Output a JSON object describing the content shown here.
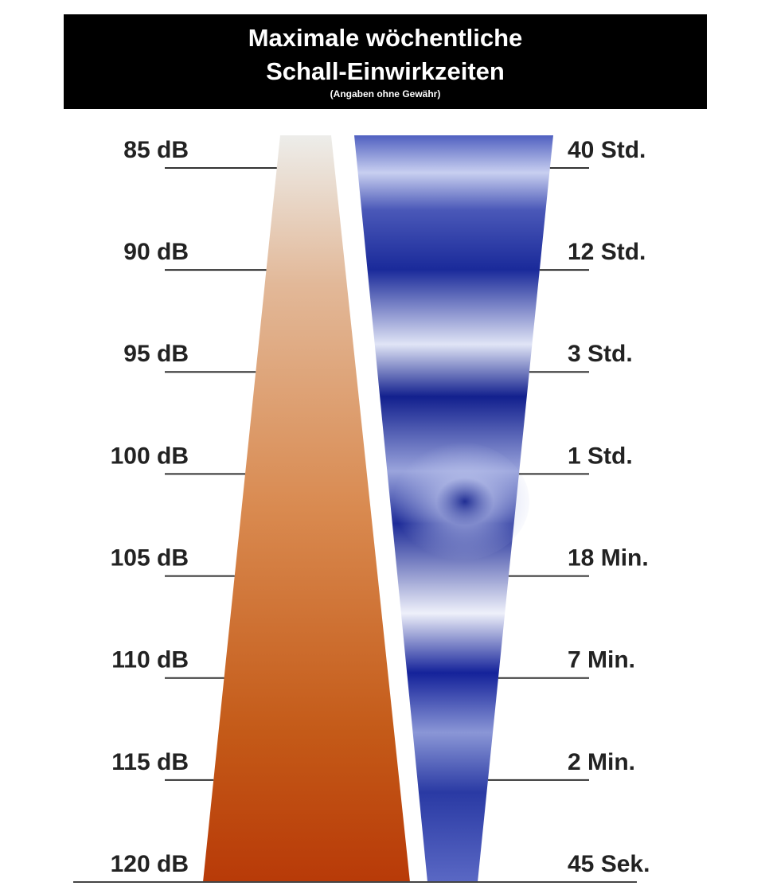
{
  "header": {
    "title": [
      "Maximale wöchentliche",
      "Schall-Einwirkzeiten"
    ],
    "subtitle": "(Angaben ohne Gewähr)"
  },
  "levels": [
    {
      "db": "85 dB",
      "time": "40 Std."
    },
    {
      "db": "90 dB",
      "time": "12 Std."
    },
    {
      "db": "95 dB",
      "time": "3 Std."
    },
    {
      "db": "100 dB",
      "time": "1 Std."
    },
    {
      "db": "105 dB",
      "time": "18 Min."
    },
    {
      "db": "110 dB",
      "time": "7 Min."
    },
    {
      "db": "115 dB",
      "time": "2 Min."
    },
    {
      "db": "120 dB",
      "time": "45 Sek."
    }
  ]
}
